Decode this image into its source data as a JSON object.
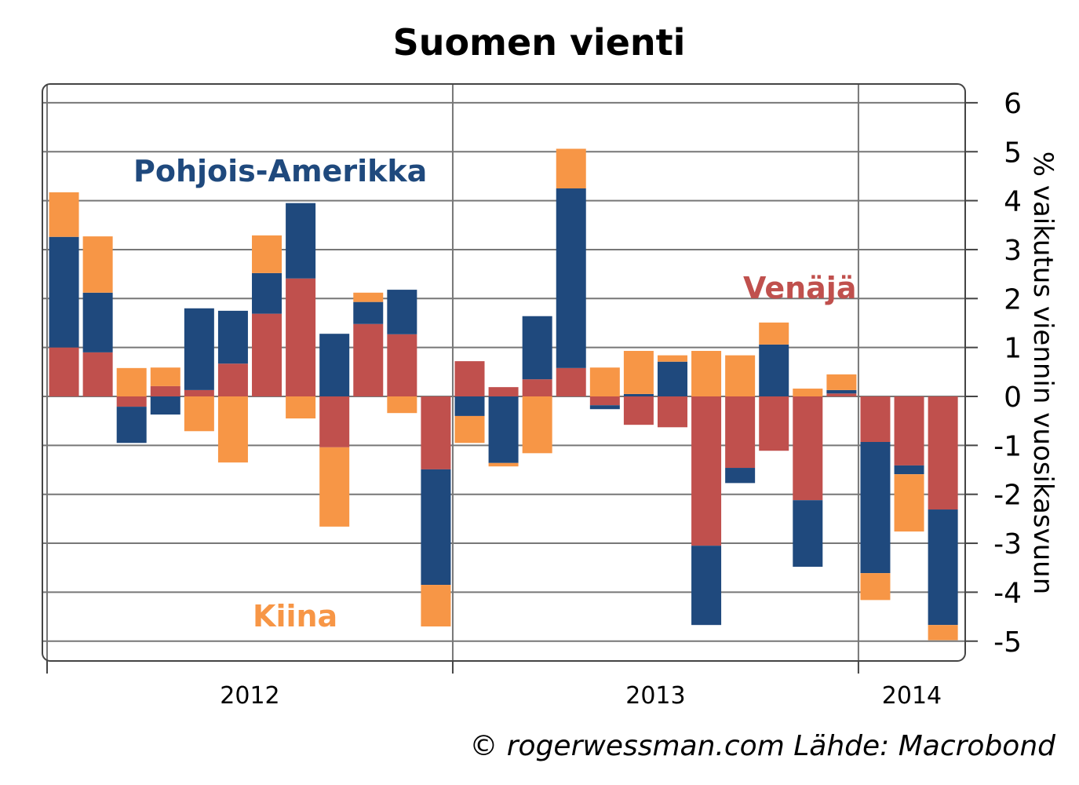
{
  "chart_data": {
    "type": "bar",
    "stacked": true,
    "title": "Suomen vienti",
    "xlabel": "",
    "ylabel": "% vaikutus viennin vuosikasvuun",
    "ylim": [
      -5.4,
      6.2
    ],
    "yticks": [
      6,
      5,
      4,
      3,
      2,
      1,
      0,
      -1,
      -2,
      -3,
      -4,
      -5
    ],
    "ytick_labels": [
      "6",
      "5",
      "4",
      "3",
      "2",
      "1",
      "0",
      "-1",
      "-2",
      "-3",
      "-4",
      "-5"
    ],
    "xtick_labels": [
      "2012",
      "2013",
      "2014"
    ],
    "months_per_year": 12,
    "grid": true,
    "series": [
      {
        "name": "Venäjä",
        "color": "#c0504d",
        "values": [
          1.0,
          0.9,
          -0.21,
          0.21,
          0.13,
          0.67,
          1.69,
          2.41,
          -1.04,
          1.48,
          1.27,
          -1.49,
          0.72,
          0.19,
          0.35,
          0.58,
          -0.18,
          -0.58,
          -0.63,
          -3.05,
          -1.46,
          -1.11,
          -2.12,
          0.06,
          -0.93,
          -1.41,
          -2.31
        ]
      },
      {
        "name": "Pohjois-Amerikka",
        "color": "#1f497d",
        "values": [
          2.26,
          1.22,
          -0.74,
          -0.37,
          1.67,
          1.08,
          0.83,
          1.54,
          1.28,
          0.45,
          0.91,
          -2.36,
          -0.4,
          -1.36,
          1.29,
          3.67,
          -0.08,
          0.05,
          0.71,
          -1.62,
          -0.31,
          1.06,
          -1.36,
          0.07,
          -2.68,
          -0.18,
          -2.36
        ]
      },
      {
        "name": "Kiina",
        "color": "#f79646",
        "values": [
          0.91,
          1.15,
          0.58,
          0.38,
          -0.71,
          -1.35,
          0.77,
          -0.45,
          -1.62,
          0.19,
          -0.34,
          -0.85,
          -0.55,
          -0.07,
          -1.16,
          0.81,
          0.59,
          0.88,
          0.13,
          0.93,
          0.84,
          0.45,
          0.16,
          0.32,
          -0.55,
          -1.17,
          -0.31
        ]
      }
    ],
    "legend_placement": "inline-labels",
    "credit": "© rogerwessman.com Lähde: Macrobond"
  }
}
